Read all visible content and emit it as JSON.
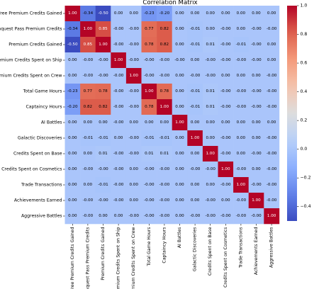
{
  "chart_data": {
    "type": "heatmap",
    "title": "Correlation Matrix",
    "labels": [
      "Free Premium Credits Gained",
      "Conquest Pass Premium Credits",
      "Premium Credits Gained",
      "Premium Credits Spent on Ship",
      "Premium Credits Spent on Crew",
      "Total Game Hours",
      "Captaincy Hours",
      "AI Battles",
      "Galactic Discoveries",
      "Credits Spent on Base",
      "Credits Spent on Cosmetics",
      "Trade Transactions",
      "Achievements Earned",
      "Aggressive Battles"
    ],
    "cell_labels": [
      [
        "1.00",
        "-0.34",
        "-0.50",
        "0.00",
        "0.00",
        "-0.23",
        "-0.20",
        "0.00",
        "0.00",
        "0.00",
        "0.00",
        "0.00",
        "0.00",
        "0.00"
      ],
      [
        "-0.34",
        "1.00",
        "0.85",
        "-0.00",
        "-0.00",
        "0.77",
        "0.82",
        "0.00",
        "-0.01",
        "0.00",
        "-0.00",
        "0.00",
        "-0.00",
        "-0.00"
      ],
      [
        "-0.50",
        "0.85",
        "1.00",
        "-0.00",
        "-0.00",
        "0.78",
        "0.82",
        "0.00",
        "-0.01",
        "0.01",
        "-0.00",
        "-0.01",
        "-0.00",
        "0.00"
      ],
      [
        "0.00",
        "-0.00",
        "-0.00",
        "1.00",
        "-0.00",
        "-0.00",
        "-0.00",
        "-0.00",
        "0.00",
        "-0.00",
        "-0.00",
        "-0.00",
        "-0.00",
        "0.00"
      ],
      [
        "0.00",
        "-0.00",
        "-0.00",
        "-0.00",
        "1.00",
        "-0.00",
        "-0.00",
        "0.00",
        "-0.00",
        "-0.00",
        "0.00",
        "0.00",
        "0.00",
        "-0.00"
      ],
      [
        "-0.23",
        "0.77",
        "0.78",
        "-0.00",
        "-0.00",
        "1.00",
        "0.78",
        "0.00",
        "-0.01",
        "0.01",
        "-0.00",
        "-0.00",
        "-0.00",
        "-0.00"
      ],
      [
        "-0.20",
        "0.82",
        "0.82",
        "-0.00",
        "-0.00",
        "0.78",
        "1.00",
        "0.00",
        "-0.01",
        "0.01",
        "-0.00",
        "-0.00",
        "-0.00",
        "-0.00"
      ],
      [
        "0.00",
        "0.00",
        "0.00",
        "-0.00",
        "0.00",
        "0.00",
        "0.00",
        "1.00",
        "0.00",
        "0.00",
        "0.00",
        "0.00",
        "0.00",
        "0.00"
      ],
      [
        "0.00",
        "-0.01",
        "-0.01",
        "0.00",
        "-0.00",
        "-0.01",
        "-0.01",
        "0.00",
        "1.00",
        "0.00",
        "-0.00",
        "0.00",
        "0.00",
        "-0.00"
      ],
      [
        "0.00",
        "0.00",
        "0.01",
        "-0.00",
        "-0.00",
        "0.01",
        "0.01",
        "0.00",
        "0.00",
        "1.00",
        "-0.00",
        "0.00",
        "-0.00",
        "-0.00"
      ],
      [
        "0.00",
        "-0.00",
        "-0.00",
        "-0.00",
        "0.00",
        "-0.00",
        "-0.00",
        "0.00",
        "-0.00",
        "-0.00",
        "1.00",
        "-0.00",
        "0.00",
        "-0.00"
      ],
      [
        "0.00",
        "0.00",
        "-0.01",
        "-0.00",
        "0.00",
        "-0.00",
        "-0.00",
        "0.00",
        "0.00",
        "0.00",
        "-0.00",
        "1.00",
        "-0.00",
        "-0.00"
      ],
      [
        "0.00",
        "-0.00",
        "-0.00",
        "-0.00",
        "0.00",
        "-0.00",
        "-0.00",
        "0.00",
        "0.00",
        "-0.00",
        "0.00",
        "-0.00",
        "1.00",
        "-0.00"
      ],
      [
        "0.00",
        "-0.00",
        "0.00",
        "0.00",
        "-0.00",
        "-0.00",
        "-0.00",
        "0.00",
        "-0.00",
        "-0.00",
        "-0.00",
        "-0.00",
        "-0.00",
        "1.00"
      ]
    ],
    "colormap": "coolwarm",
    "vmin": -0.5,
    "vmax": 1.0,
    "colorbar_ticks": [
      "1.0",
      "0.8",
      "0.6",
      "0.4",
      "0.2",
      "0.0",
      "−0.2",
      "−0.4"
    ]
  }
}
